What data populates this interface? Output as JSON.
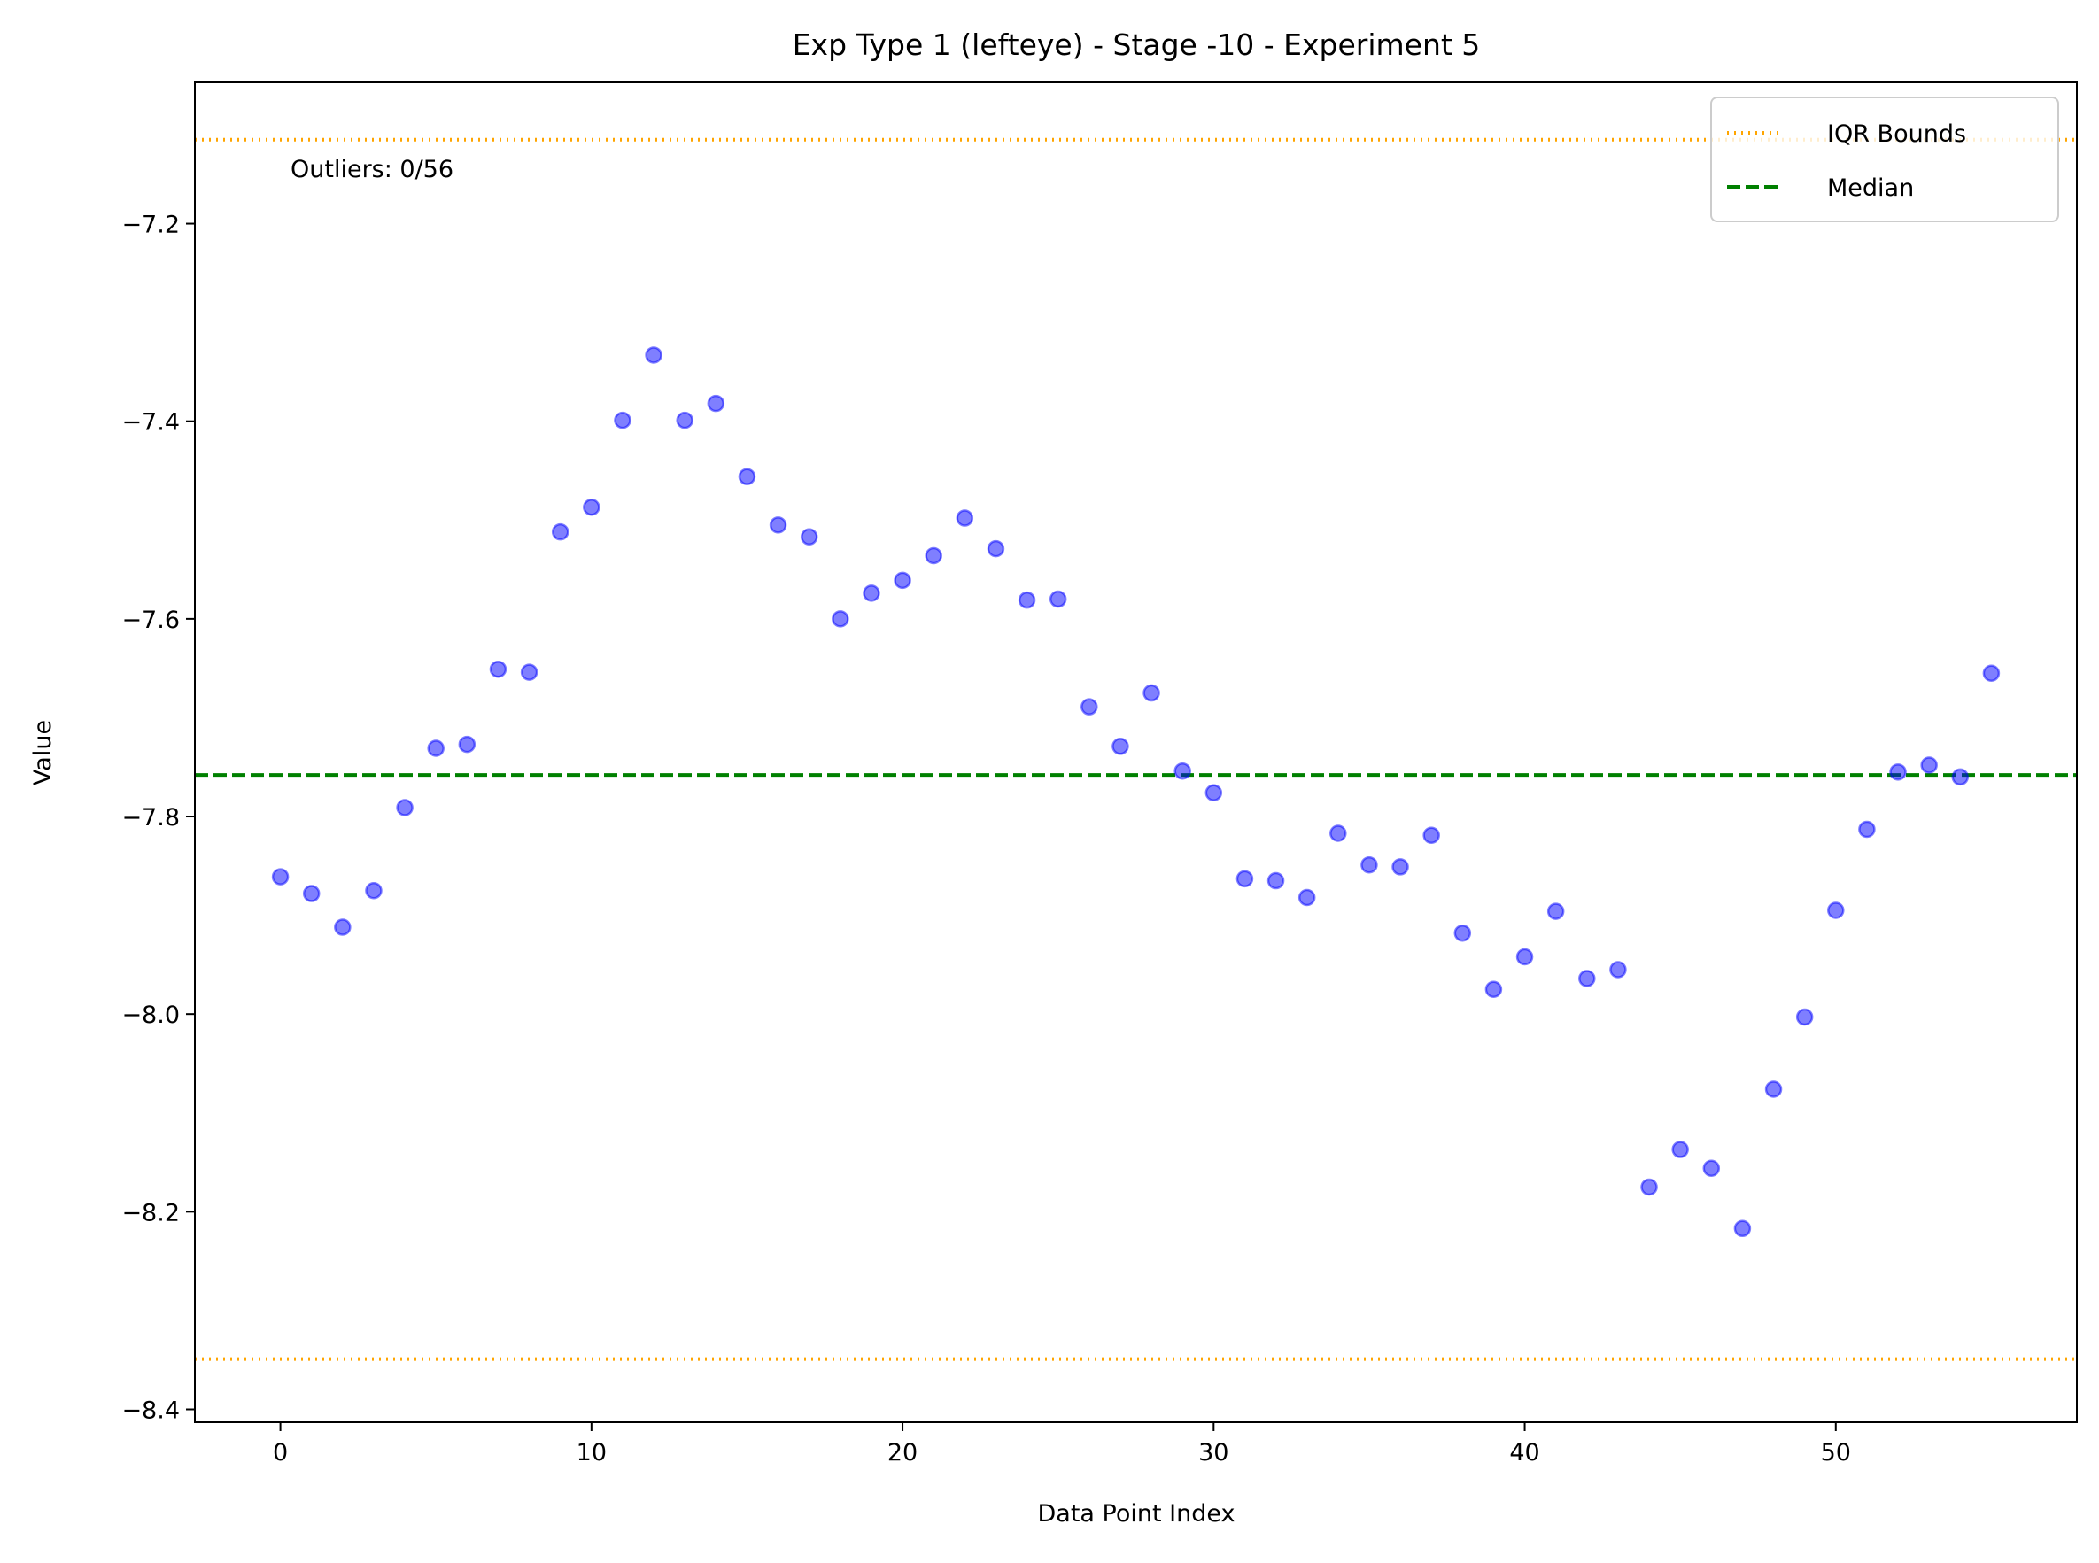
{
  "chart_data": {
    "type": "scatter",
    "title": "Exp Type 1 (lefteye) - Stage -10 - Experiment 5",
    "xlabel": "Data Point Index",
    "ylabel": "Value",
    "xlim": [
      -2.75,
      57.75
    ],
    "ylim": [
      -8.413,
      -7.057
    ],
    "xticks": [
      0,
      10,
      20,
      30,
      40,
      50
    ],
    "xtick_labels": [
      "0",
      "10",
      "20",
      "30",
      "40",
      "50"
    ],
    "yticks": [
      -8.4,
      -8.2,
      -8.0,
      -7.8,
      -7.6,
      -7.4,
      -7.2
    ],
    "ytick_labels": [
      "−8.4",
      "−8.2",
      "−8.0",
      "−7.8",
      "−7.6",
      "−7.4",
      "−7.2"
    ],
    "grid": false,
    "series": [
      {
        "color": "#0000ff",
        "x": [
          0,
          1,
          2,
          3,
          4,
          5,
          6,
          7,
          8,
          9,
          10,
          11,
          12,
          13,
          14,
          15,
          16,
          17,
          18,
          19,
          20,
          21,
          22,
          23,
          24,
          25,
          26,
          27,
          28,
          29,
          30,
          31,
          32,
          33,
          34,
          35,
          36,
          37,
          38,
          39,
          40,
          41,
          42,
          43,
          44,
          45,
          46,
          47,
          48,
          49,
          50,
          51,
          52,
          53,
          54,
          55
        ],
        "y": [
          -7.861,
          -7.878,
          -7.912,
          -7.875,
          -7.791,
          -7.731,
          -7.727,
          -7.651,
          -7.654,
          -7.512,
          -7.487,
          -7.399,
          -7.333,
          -7.399,
          -7.382,
          -7.456,
          -7.505,
          -7.517,
          -7.6,
          -7.574,
          -7.561,
          -7.536,
          -7.498,
          -7.529,
          -7.581,
          -7.58,
          -7.689,
          -7.729,
          -7.675,
          -7.754,
          -7.776,
          -7.863,
          -7.865,
          -7.882,
          -7.817,
          -7.849,
          -7.851,
          -7.819,
          -7.918,
          -7.975,
          -7.942,
          -7.896,
          -7.964,
          -7.955,
          -8.175,
          -8.137,
          -8.156,
          -8.217,
          -8.076,
          -8.003,
          -7.895,
          -7.813,
          -7.755,
          -7.748,
          -7.76,
          -7.655
        ]
      }
    ],
    "iqr_bounds": {
      "upper": -7.115,
      "lower": -8.349,
      "color": "#ffa500"
    },
    "median": {
      "value": -7.758,
      "color": "#008000"
    },
    "annotation": "Outliers: 0/56",
    "legend": {
      "placement": "upper right",
      "entries": [
        {
          "label": "IQR Bounds",
          "style": "dotted",
          "color": "#ffa500"
        },
        {
          "label": "Median",
          "style": "dashed",
          "color": "#008000"
        }
      ]
    }
  }
}
